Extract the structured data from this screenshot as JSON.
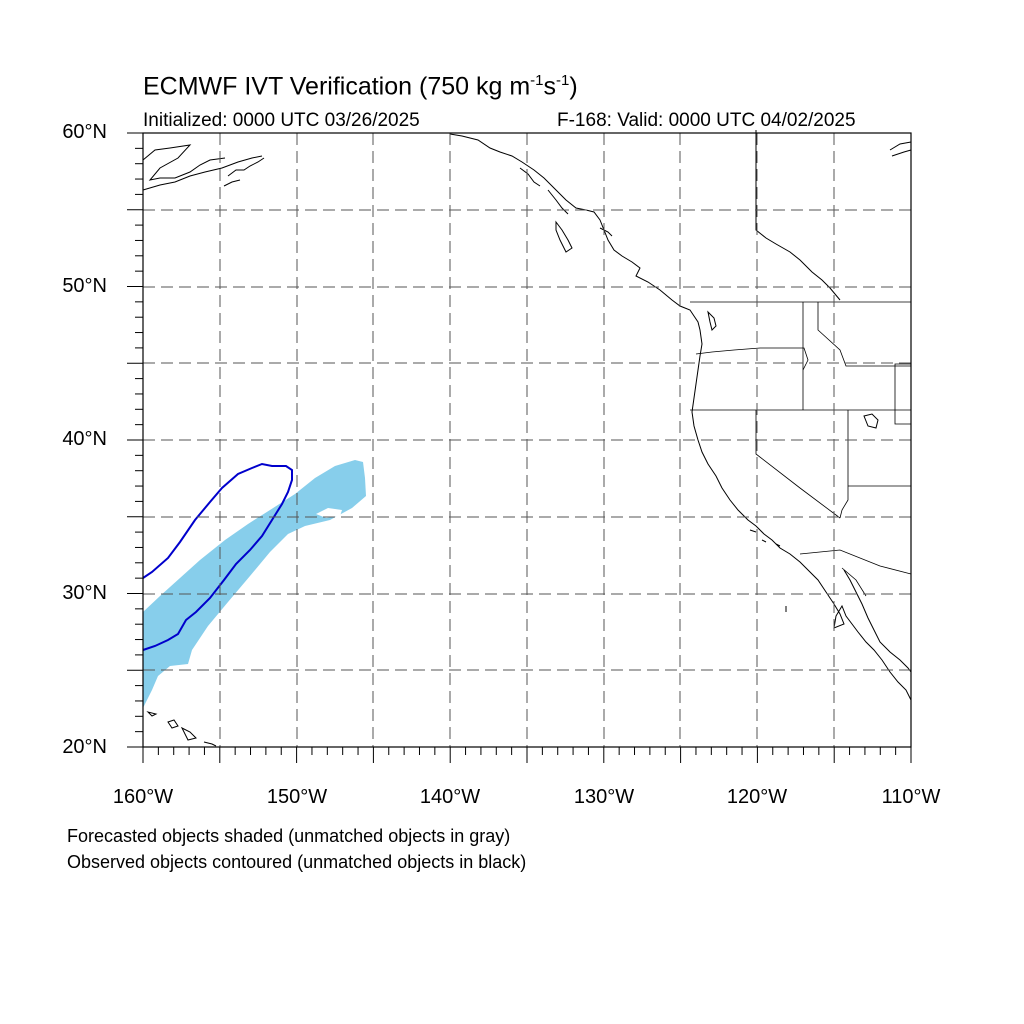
{
  "title": {
    "main": "ECMWF IVT Verification (750 kg m",
    "sup1": "-1",
    "mid": "s",
    "sup2": "-1",
    "end": ")"
  },
  "initialized": "Initialized: 0000 UTC 03/26/2025",
  "valid": "F-168: Valid: 0000 UTC 04/02/2025",
  "lat_labels": [
    "60°N",
    "50°N",
    "40°N",
    "30°N",
    "20°N"
  ],
  "lon_labels": [
    "160°W",
    "150°W",
    "140°W",
    "130°W",
    "120°W",
    "110°W"
  ],
  "notes": {
    "line1": "Forecasted objects shaded (unmatched objects in gray)",
    "line2": "Observed objects contoured (unmatched objects in black)"
  },
  "colors": {
    "forecast_fill": "#87ceeb",
    "observed_contour": "#0000cc",
    "coastline": "#000000",
    "grid": "#555555"
  },
  "map_extent": {
    "lon_min": -160,
    "lon_max": -110,
    "lat_min": 20,
    "lat_max": 60
  }
}
